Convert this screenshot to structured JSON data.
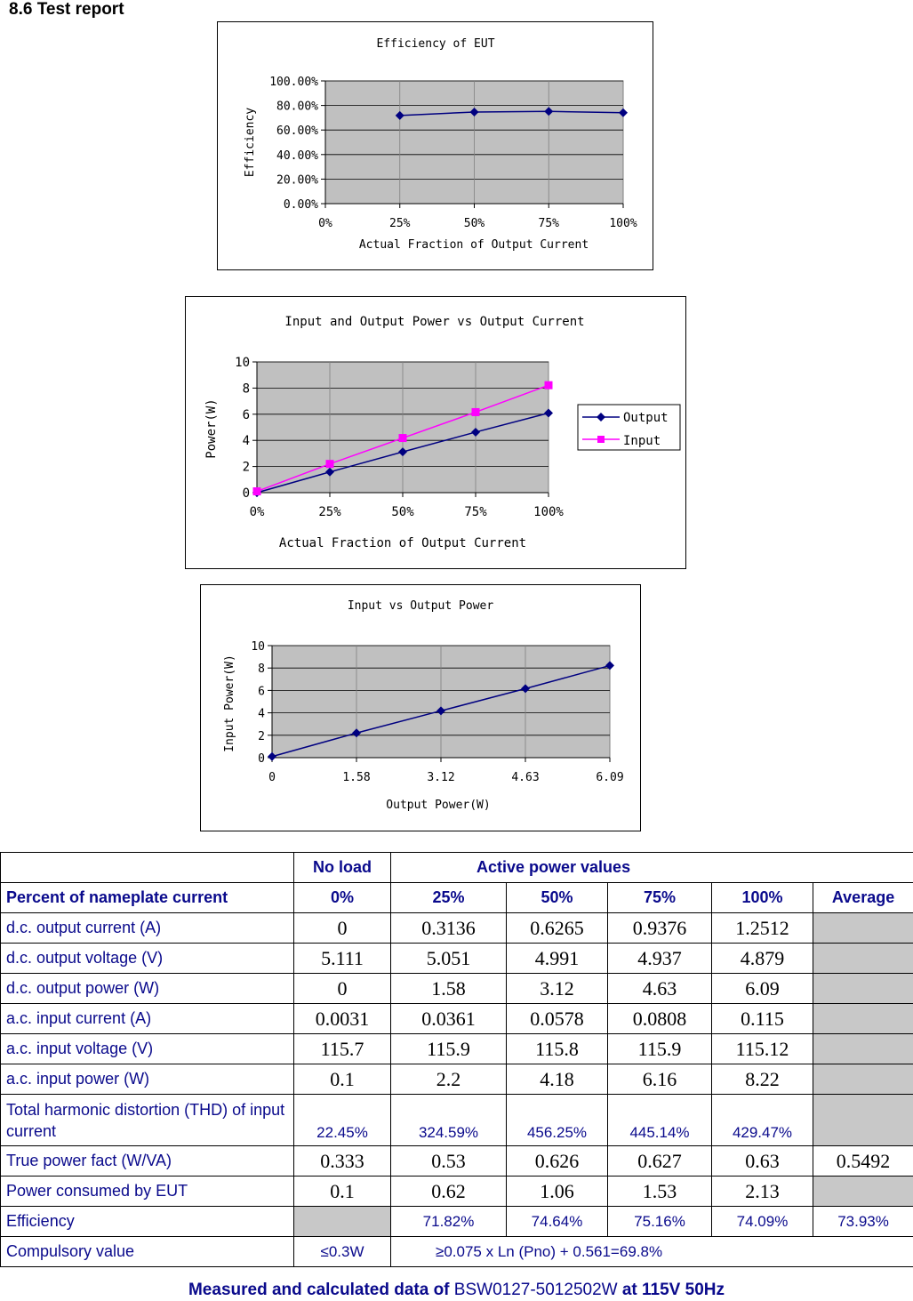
{
  "section_title": "8.6 Test report",
  "chart_data": [
    {
      "type": "line",
      "title": "Efficiency of EUT",
      "xlabel": "Actual Fraction of Output Current",
      "ylabel": "Efficiency",
      "categories": [
        "0%",
        "25%",
        "50%",
        "75%",
        "100%"
      ],
      "y_ticks": [
        "0.00%",
        "20.00%",
        "40.00%",
        "60.00%",
        "80.00%",
        "100.00%"
      ],
      "ylim": [
        0,
        100
      ],
      "series": [
        {
          "name": "Efficiency",
          "color": "#000080",
          "marker": "diamond",
          "x": [
            1,
            2,
            3,
            4
          ],
          "values": [
            71.82,
            74.64,
            75.16,
            74.09
          ]
        }
      ]
    },
    {
      "type": "line",
      "title": "Input and Output Power vs Output Current",
      "xlabel": "Actual Fraction of Output Current",
      "ylabel": "Power(W)",
      "categories": [
        "0%",
        "25%",
        "50%",
        "75%",
        "100%"
      ],
      "y_ticks": [
        "0",
        "2",
        "4",
        "6",
        "8",
        "10"
      ],
      "ylim": [
        0,
        10
      ],
      "legend": "right",
      "series": [
        {
          "name": "Output",
          "color": "#000080",
          "marker": "diamond",
          "x": [
            0,
            1,
            2,
            3,
            4
          ],
          "values": [
            0,
            1.58,
            3.12,
            4.63,
            6.09
          ]
        },
        {
          "name": "Input",
          "color": "#ff00ff",
          "marker": "square",
          "x": [
            0,
            1,
            2,
            3,
            4
          ],
          "values": [
            0.1,
            2.2,
            4.18,
            6.16,
            8.22
          ]
        }
      ]
    },
    {
      "type": "line",
      "title": "Input vs Output Power",
      "xlabel": "Output Power(W)",
      "ylabel": "Input Power(W)",
      "categories": [
        "0",
        "1.58",
        "3.12",
        "4.63",
        "6.09"
      ],
      "y_ticks": [
        "0",
        "2",
        "4",
        "6",
        "8",
        "10"
      ],
      "ylim": [
        0,
        10
      ],
      "series": [
        {
          "name": "Input Power",
          "color": "#000080",
          "marker": "diamond",
          "x": [
            0,
            1,
            2,
            3,
            4
          ],
          "values": [
            0.1,
            2.2,
            4.18,
            6.16,
            8.22
          ]
        }
      ]
    }
  ],
  "table": {
    "group_header": {
      "no_load": "No load",
      "active": "Active power values"
    },
    "header": [
      "Percent of nameplate current",
      "0%",
      "25%",
      "50%",
      "75%",
      "100%",
      "Average"
    ],
    "rows": [
      {
        "label": "d.c. output current (A)",
        "cells": [
          "0",
          "0.3136",
          "0.6265",
          "0.9376",
          "1.2512",
          ""
        ]
      },
      {
        "label": "d.c. output voltage (V)",
        "cells": [
          "5.111",
          "5.051",
          "4.991",
          "4.937",
          "4.879",
          ""
        ]
      },
      {
        "label": "d.c. output power (W)",
        "cells": [
          "0",
          "1.58",
          "3.12",
          "4.63",
          "6.09",
          ""
        ]
      },
      {
        "label": "a.c. input current (A)",
        "cells": [
          "0.0031",
          "0.0361",
          "0.0578",
          "0.0808",
          "0.115",
          ""
        ]
      },
      {
        "label": "a.c. input voltage (V)",
        "cells": [
          "115.7",
          "115.9",
          "115.8",
          "115.9",
          "115.12",
          ""
        ]
      },
      {
        "label": "a.c. input power (W)",
        "cells": [
          "0.1",
          "2.2",
          "4.18",
          "6.16",
          "8.22",
          ""
        ]
      },
      {
        "label": "Total harmonic distortion (THD) of input current",
        "cells": [
          "22.45%",
          "324.59%",
          "456.25%",
          "445.14%",
          "429.47%",
          ""
        ]
      },
      {
        "label": "True power fact (W/VA)",
        "cells": [
          "0.333",
          "0.53",
          "0.626",
          "0.627",
          "0.63",
          "0.5492"
        ]
      },
      {
        "label": "Power consumed by EUT",
        "cells": [
          "0.1",
          "0.62",
          "1.06",
          "1.53",
          "2.13",
          ""
        ]
      },
      {
        "label": "Efficiency",
        "cells": [
          "",
          "71.82%",
          "74.64%",
          "75.16%",
          "74.09%",
          "73.93%"
        ]
      }
    ],
    "compulsory": {
      "label": "Compulsory value",
      "no_load": "≤0.3W",
      "active": "≥0.075 x Ln (Pno) + 0.561=69.8%"
    }
  },
  "footer": {
    "prefix": "Measured and calculated data of",
    "model": "BSW0127-5012502W",
    "suffix": "at 115V 50Hz"
  }
}
